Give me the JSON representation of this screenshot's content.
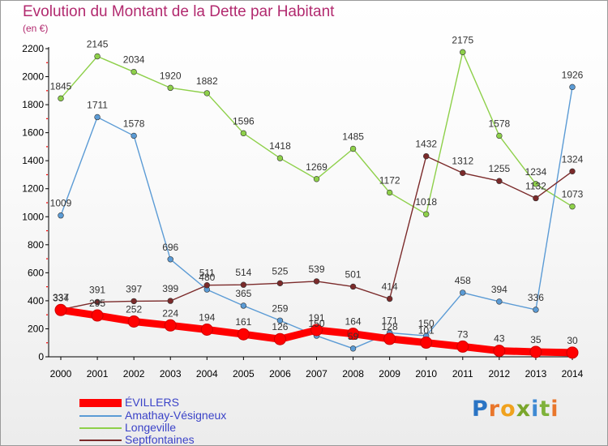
{
  "title": "Evolution du Montant de la Dette par Habitant",
  "subtitle": "(en €)",
  "logo": {
    "text": "Proxiti",
    "letters": [
      "P",
      "r",
      "o",
      "x",
      "i",
      "t",
      "i"
    ],
    "colors": [
      "#2a74c4",
      "#e9762b",
      "#f0a21e",
      "#7aa62b",
      "#3f8ad3",
      "#7fb23a",
      "#e9762b"
    ]
  },
  "chart_data": {
    "type": "line",
    "title": "Evolution du Montant de la Dette par Habitant",
    "ylabel": "(en €)",
    "xlabel": "",
    "x": [
      2000,
      2001,
      2002,
      2003,
      2004,
      2005,
      2006,
      2007,
      2008,
      2009,
      2010,
      2011,
      2012,
      2013,
      2014
    ],
    "ylim": [
      0,
      2200
    ],
    "yticks": [
      0,
      200,
      400,
      600,
      800,
      1000,
      1200,
      1400,
      1600,
      1800,
      2000,
      2200
    ],
    "grid": false,
    "legend_position": "bottom-left",
    "series": [
      {
        "name": "ÉVILLERS",
        "color": "#ff0000",
        "values": [
          334,
          295,
          252,
          224,
          194,
          161,
          126,
          191,
          164,
          128,
          101,
          73,
          43,
          35,
          30
        ],
        "label_texts": [
          "334",
          "295",
          "252",
          "224",
          "194",
          "161",
          "126",
          "191",
          "164",
          "128",
          "101",
          "73",
          "43",
          "35",
          "30"
        ]
      },
      {
        "name": "Amathay-Vésigneux",
        "color": "#5b9bd5",
        "values": [
          1009,
          1711,
          1578,
          696,
          480,
          365,
          259,
          150,
          59,
          171,
          150,
          458,
          394,
          336,
          1926
        ],
        "label_texts": [
          "1009",
          "1711",
          "1578",
          "696",
          "480",
          "365",
          "259",
          "150",
          "59",
          "171",
          "150",
          "458",
          "394",
          "336",
          "1926"
        ]
      },
      {
        "name": "Longeville",
        "color": "#8ed04a",
        "values": [
          1845,
          2145,
          2034,
          1920,
          1882,
          1596,
          1418,
          1269,
          1485,
          1172,
          1018,
          2175,
          1578,
          1234,
          1073
        ],
        "label_texts": [
          "1845",
          "2145",
          "2034",
          "1920",
          "1882",
          "1596",
          "1418",
          "1269",
          "1485",
          "1172",
          "1018",
          "2175",
          "1578",
          "1234",
          "1073"
        ]
      },
      {
        "name": "Septfontaines",
        "color": "#7b2a2a",
        "values": [
          337,
          391,
          397,
          399,
          511,
          514,
          525,
          539,
          501,
          414,
          1432,
          1312,
          1255,
          1132,
          1324
        ],
        "label_texts": [
          "337",
          "391",
          "397",
          "399",
          "511",
          "514",
          "525",
          "539",
          "501",
          "414",
          "1432",
          "1312",
          "1255",
          "1132",
          "1324"
        ]
      }
    ]
  }
}
